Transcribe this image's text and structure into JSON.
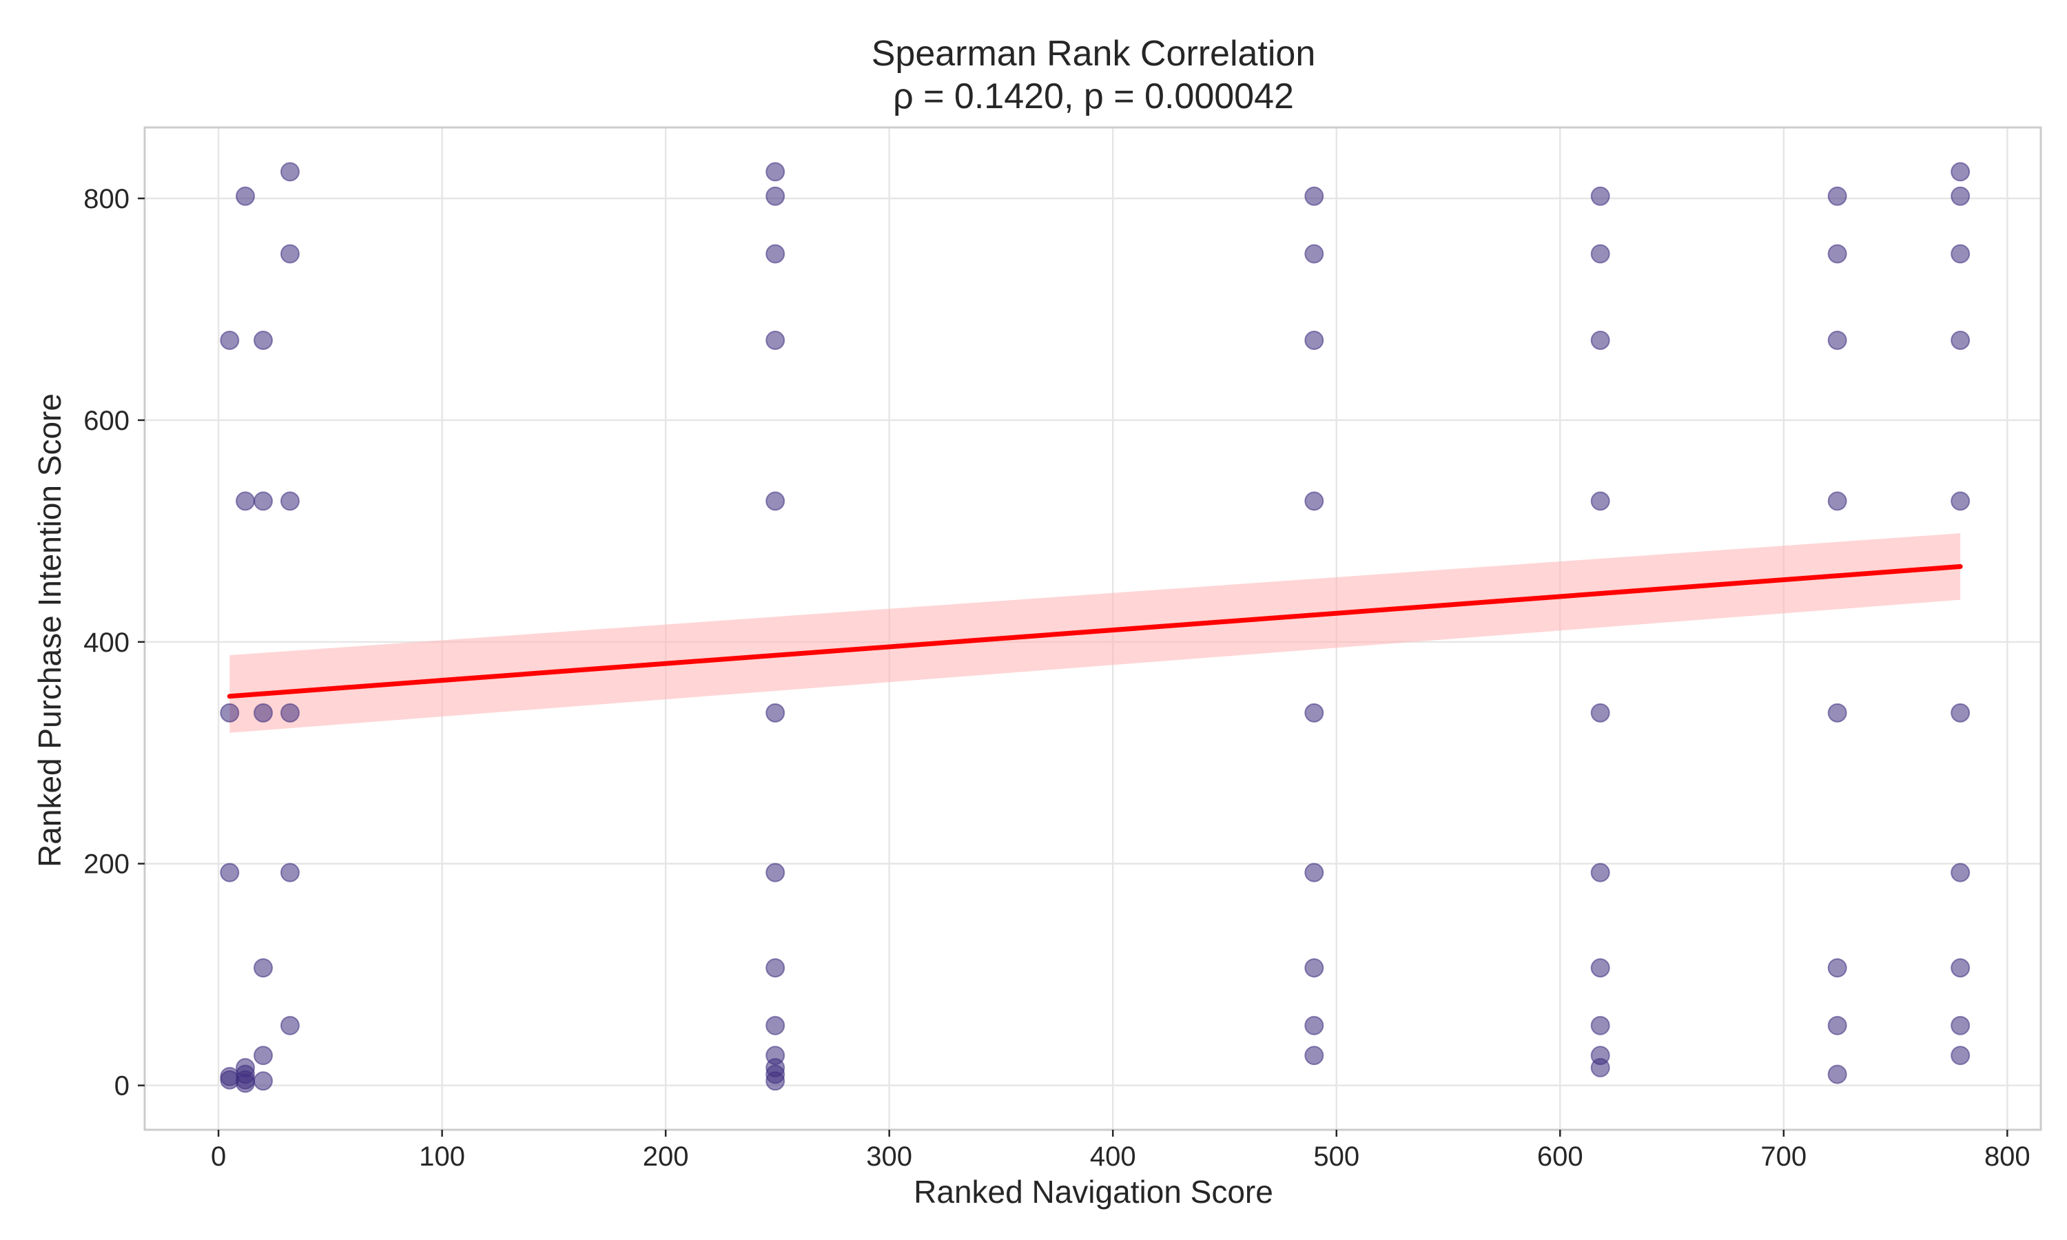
{
  "chart_data": {
    "type": "scatter",
    "title": "Spearman Rank Correlation",
    "subtitle": "ρ = 0.1420, p = 0.000042",
    "xlabel": "Ranked Navigation Score",
    "ylabel": "Ranked Purchase Intention Score",
    "xlim": [
      -33,
      815
    ],
    "ylim": [
      -40,
      864
    ],
    "xticks": [
      0,
      100,
      200,
      300,
      400,
      500,
      600,
      700,
      800
    ],
    "yticks": [
      0,
      200,
      400,
      600,
      800
    ],
    "grid": true,
    "colors": {
      "points": "#3f2f7f",
      "trend": "#ff0000",
      "band": "#ffb3b3"
    },
    "points": [
      {
        "x": 5,
        "y": 672
      },
      {
        "x": 5,
        "y": 336
      },
      {
        "x": 5,
        "y": 192
      },
      {
        "x": 5,
        "y": 8
      },
      {
        "x": 5,
        "y": 5
      },
      {
        "x": 12,
        "y": 802
      },
      {
        "x": 12,
        "y": 527
      },
      {
        "x": 12,
        "y": 16
      },
      {
        "x": 12,
        "y": 10
      },
      {
        "x": 12,
        "y": 5
      },
      {
        "x": 12,
        "y": 2
      },
      {
        "x": 20,
        "y": 672
      },
      {
        "x": 20,
        "y": 527
      },
      {
        "x": 20,
        "y": 336
      },
      {
        "x": 20,
        "y": 106
      },
      {
        "x": 20,
        "y": 27
      },
      {
        "x": 20,
        "y": 4
      },
      {
        "x": 32,
        "y": 824
      },
      {
        "x": 32,
        "y": 750
      },
      {
        "x": 32,
        "y": 527
      },
      {
        "x": 32,
        "y": 336
      },
      {
        "x": 32,
        "y": 192
      },
      {
        "x": 32,
        "y": 54
      },
      {
        "x": 249,
        "y": 824
      },
      {
        "x": 249,
        "y": 802
      },
      {
        "x": 249,
        "y": 750
      },
      {
        "x": 249,
        "y": 672
      },
      {
        "x": 249,
        "y": 527
      },
      {
        "x": 249,
        "y": 336
      },
      {
        "x": 249,
        "y": 192
      },
      {
        "x": 249,
        "y": 106
      },
      {
        "x": 249,
        "y": 54
      },
      {
        "x": 249,
        "y": 27
      },
      {
        "x": 249,
        "y": 16
      },
      {
        "x": 249,
        "y": 10
      },
      {
        "x": 249,
        "y": 4
      },
      {
        "x": 490,
        "y": 802
      },
      {
        "x": 490,
        "y": 750
      },
      {
        "x": 490,
        "y": 672
      },
      {
        "x": 490,
        "y": 527
      },
      {
        "x": 490,
        "y": 336
      },
      {
        "x": 490,
        "y": 192
      },
      {
        "x": 490,
        "y": 106
      },
      {
        "x": 490,
        "y": 54
      },
      {
        "x": 490,
        "y": 27
      },
      {
        "x": 618,
        "y": 802
      },
      {
        "x": 618,
        "y": 750
      },
      {
        "x": 618,
        "y": 672
      },
      {
        "x": 618,
        "y": 527
      },
      {
        "x": 618,
        "y": 336
      },
      {
        "x": 618,
        "y": 192
      },
      {
        "x": 618,
        "y": 106
      },
      {
        "x": 618,
        "y": 54
      },
      {
        "x": 618,
        "y": 27
      },
      {
        "x": 618,
        "y": 16
      },
      {
        "x": 724,
        "y": 802
      },
      {
        "x": 724,
        "y": 750
      },
      {
        "x": 724,
        "y": 672
      },
      {
        "x": 724,
        "y": 527
      },
      {
        "x": 724,
        "y": 336
      },
      {
        "x": 724,
        "y": 106
      },
      {
        "x": 724,
        "y": 54
      },
      {
        "x": 724,
        "y": 10
      },
      {
        "x": 779,
        "y": 824
      },
      {
        "x": 779,
        "y": 802
      },
      {
        "x": 779,
        "y": 750
      },
      {
        "x": 779,
        "y": 672
      },
      {
        "x": 779,
        "y": 527
      },
      {
        "x": 779,
        "y": 336
      },
      {
        "x": 779,
        "y": 192
      },
      {
        "x": 779,
        "y": 106
      },
      {
        "x": 779,
        "y": 54
      },
      {
        "x": 779,
        "y": 27
      }
    ],
    "trend_line": {
      "x": [
        5,
        779
      ],
      "y": [
        351,
        468
      ]
    },
    "confidence_band": {
      "x": [
        5,
        779
      ],
      "upper": [
        388,
        498
      ],
      "lower": [
        318,
        438
      ]
    }
  }
}
